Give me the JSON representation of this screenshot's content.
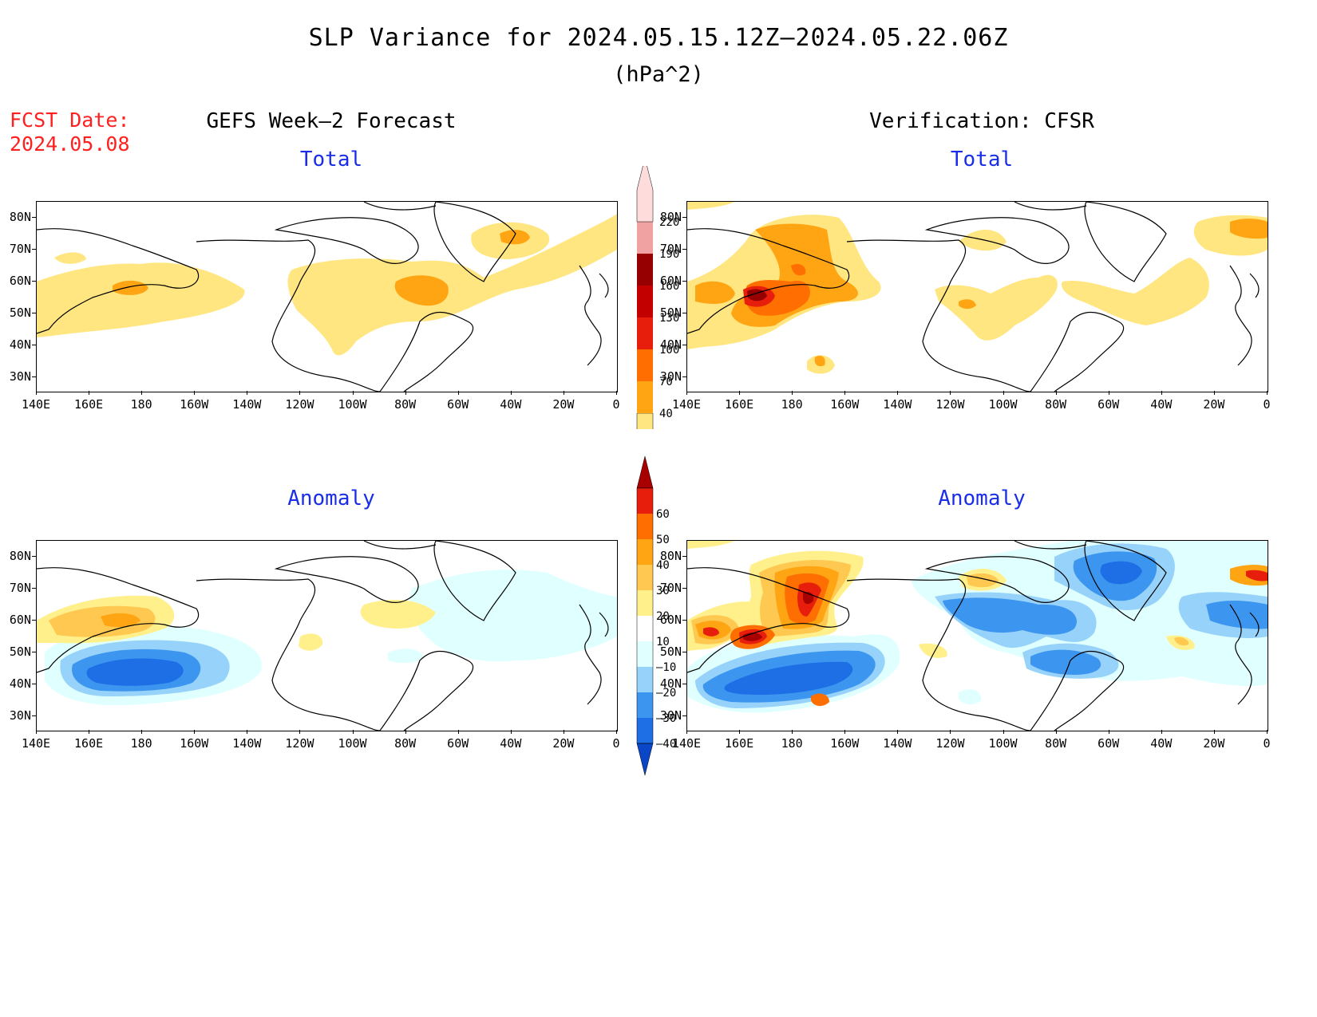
{
  "title": "SLP Variance for 2024.05.15.12Z–2024.05.22.06Z",
  "units": "(hPa^2)",
  "fcst_label": "FCST Date:",
  "fcst_date": "2024.05.08",
  "columns": {
    "left": "GEFS Week–2 Forecast",
    "right": "Verification: CFSR"
  },
  "rows": {
    "top": "Total",
    "bottom": "Anomaly"
  },
  "lat_labels": [
    "80N",
    "70N",
    "60N",
    "50N",
    "40N",
    "30N"
  ],
  "lon_labels": [
    "140E",
    "160E",
    "180",
    "160W",
    "140W",
    "120W",
    "100W",
    "80W",
    "60W",
    "40W",
    "20W",
    "0"
  ],
  "colorbar_total": {
    "levels": [
      "40",
      "70",
      "100",
      "130",
      "160",
      "190",
      "220"
    ],
    "colors": [
      "#ffe680",
      "#ffa514",
      "#ff6e00",
      "#e81e0c",
      "#c20000",
      "#960000",
      "#f0a2a2",
      "#ffdcdc"
    ]
  },
  "colorbar_anomaly": {
    "levels": [
      "60",
      "50",
      "40",
      "30",
      "20",
      "10",
      "–10",
      "–20",
      "–30",
      "–40"
    ],
    "colors": [
      "#a80000",
      "#e81e0c",
      "#ff6e00",
      "#ffa514",
      "#ffc850",
      "#fff08c",
      "#ffffff",
      "#e0ffff",
      "#96d2fa",
      "#3c96f0",
      "#1e6ee6",
      "#0a46c8"
    ]
  }
}
